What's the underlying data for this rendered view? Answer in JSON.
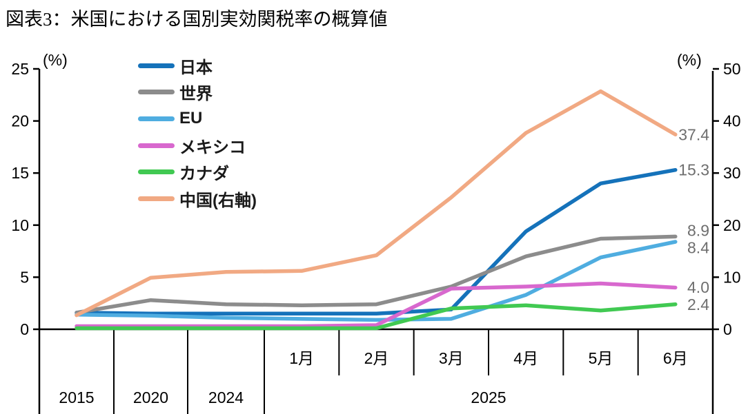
{
  "title": "図表3：米国における国別実効関税率の概算値",
  "chart_data": {
    "type": "line",
    "title": "図表3：米国における国別実効関税率の概算値",
    "categories": [
      "2015",
      "2020",
      "2024",
      "2025-1月",
      "2025-2月",
      "2025-3月",
      "2025-4月",
      "2025-5月",
      "2025-6月"
    ],
    "x_axis": {
      "month_labels": [
        "1月",
        "2月",
        "3月",
        "4月",
        "5月",
        "6月"
      ],
      "year_labels": [
        "2015",
        "2020",
        "2024",
        "2025"
      ],
      "year_spans": [
        1,
        1,
        1,
        6
      ]
    },
    "left_axis": {
      "label": "(%)",
      "min": 0,
      "max": 25,
      "ticks": [
        0,
        5,
        10,
        15,
        20,
        25
      ]
    },
    "right_axis": {
      "label": "(%)",
      "min": 0,
      "max": 50,
      "ticks": [
        0,
        10,
        20,
        30,
        40,
        50
      ]
    },
    "grid": false,
    "legend_position": "top-left",
    "series": [
      {
        "name": "日本",
        "color": "#1572BA",
        "axis": "left",
        "values": [
          1.6,
          1.5,
          1.5,
          1.5,
          1.5,
          1.9,
          9.4,
          14.0,
          15.3
        ]
      },
      {
        "name": "世界",
        "color": "#8C8C8C",
        "axis": "left",
        "values": [
          1.6,
          2.8,
          2.4,
          2.3,
          2.4,
          4.1,
          7.0,
          8.7,
          8.9
        ]
      },
      {
        "name": "EU",
        "color": "#4FADE0",
        "axis": "left",
        "values": [
          1.4,
          1.3,
          1.1,
          1.0,
          0.9,
          1.0,
          3.3,
          6.9,
          8.4
        ]
      },
      {
        "name": "メキシコ",
        "color": "#D868CE",
        "axis": "left",
        "values": [
          0.3,
          0.3,
          0.3,
          0.3,
          0.4,
          3.9,
          4.1,
          4.4,
          4.0
        ]
      },
      {
        "name": "カナダ",
        "color": "#41C952",
        "axis": "left",
        "values": [
          0.1,
          0.1,
          0.1,
          0.1,
          0.1,
          2.0,
          2.3,
          1.8,
          2.4
        ]
      },
      {
        "name": "中国(右軸)",
        "color": "#F1A983",
        "axis": "right",
        "values": [
          2.7,
          9.9,
          11.0,
          11.2,
          14.2,
          25.3,
          37.7,
          45.7,
          37.4
        ]
      }
    ],
    "end_labels": [
      "37.4",
      "15.3",
      "8.9",
      "8.4",
      "4.0",
      "2.4"
    ],
    "end_label_color": "#6e6e6e"
  }
}
